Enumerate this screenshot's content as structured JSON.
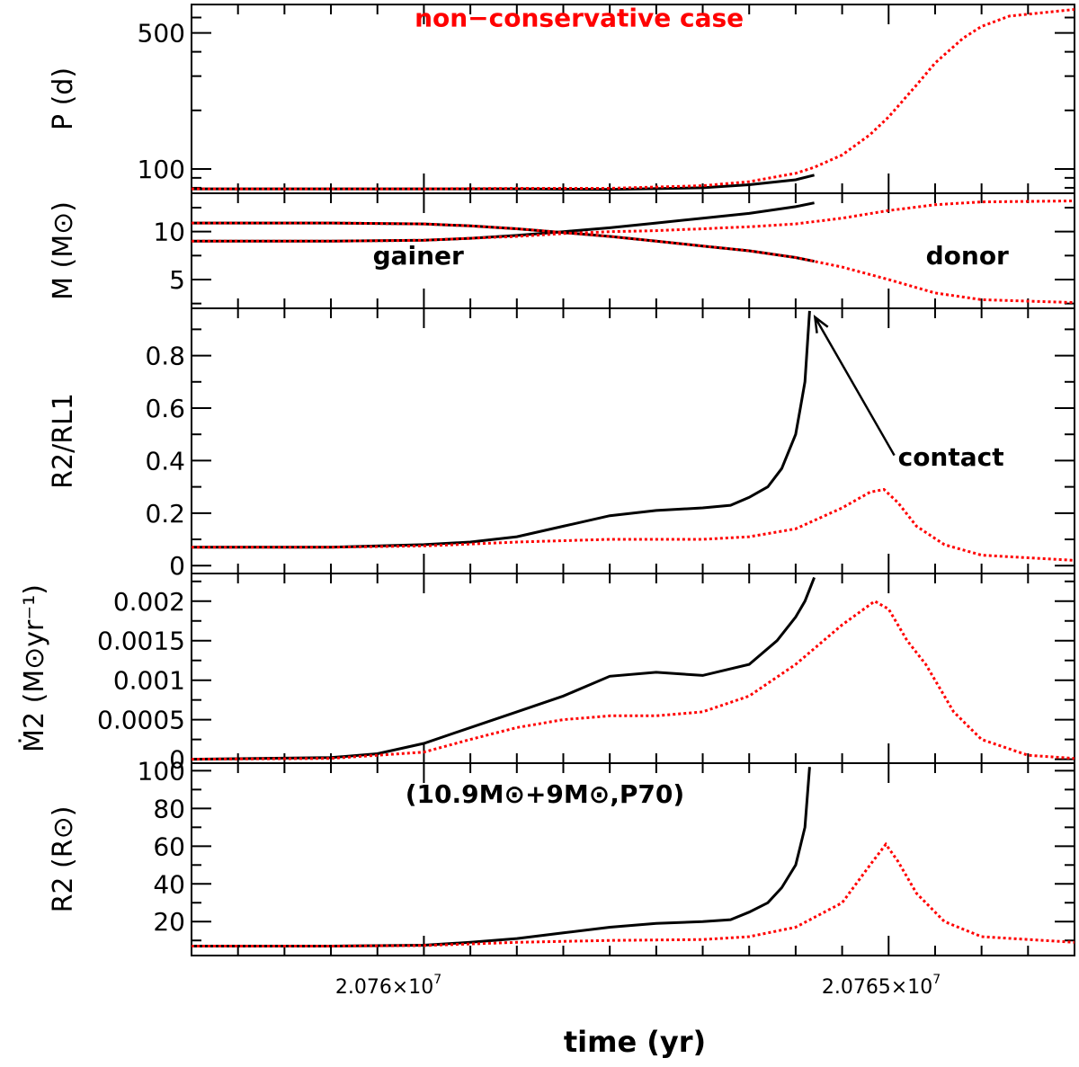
{
  "colors": {
    "conservative": "#000000",
    "non_conservative": "#ff0000",
    "axis": "#000000"
  },
  "x_axis": {
    "label": "time (yr)",
    "range": [
      20757500,
      20767000
    ],
    "ticks": [
      {
        "value": 20760000,
        "mantissa": "2.076×10",
        "exponent": "7"
      },
      {
        "value": 20765000,
        "mantissa": "2.0765×10",
        "exponent": "7"
      }
    ]
  },
  "chart_data": [
    {
      "type": "line",
      "id": "period",
      "yscale": "log",
      "ylabel": "P (d)",
      "ylim": [
        75,
        700
      ],
      "yticks": [
        100,
        500
      ],
      "annotations": [
        {
          "text": "non−conservative case",
          "color": "#ff0000",
          "x": 20759900,
          "y": 540
        }
      ],
      "series": [
        {
          "name": "conservative",
          "style": "solid",
          "x": [
            20757500,
            20760000,
            20761000,
            20762000,
            20763000,
            20763500,
            20764000,
            20764200
          ],
          "y": [
            79,
            79,
            79,
            78.5,
            80,
            83,
            88,
            93
          ]
        },
        {
          "name": "non-conservative",
          "style": "dotted",
          "x": [
            20757500,
            20760000,
            20761000,
            20762000,
            20763000,
            20763500,
            20764000,
            20764200,
            20764500,
            20764800,
            20765000,
            20765300,
            20765500,
            20765800,
            20766000,
            20766300,
            20767000
          ],
          "y": [
            79,
            79,
            79.5,
            79.5,
            82,
            86,
            95,
            102,
            118,
            150,
            185,
            270,
            350,
            470,
            540,
            610,
            660
          ]
        }
      ]
    },
    {
      "type": "line",
      "id": "mass",
      "ylabel": "M (M⊙)",
      "ylim": [
        2,
        14
      ],
      "yticks": [
        5,
        10
      ],
      "annotations": [
        {
          "text": "gainer",
          "x": 20759450,
          "y": 6.6
        },
        {
          "text": "donor",
          "x": 20765400,
          "y": 6.6
        }
      ],
      "series": [
        {
          "name": "donor conservative",
          "style": "solid",
          "x": [
            20757500,
            20759000,
            20760000,
            20760500,
            20761000,
            20761500,
            20762000,
            20762500,
            20763000,
            20763500,
            20764000,
            20764200
          ],
          "y": [
            10.9,
            10.9,
            10.8,
            10.6,
            10.3,
            9.9,
            9.5,
            9.0,
            8.5,
            8.0,
            7.3,
            6.9
          ]
        },
        {
          "name": "gainer conservative",
          "style": "solid",
          "x": [
            20757500,
            20759000,
            20760000,
            20760500,
            20761000,
            20761500,
            20762000,
            20762500,
            20763000,
            20763500,
            20764000,
            20764200
          ],
          "y": [
            9.0,
            9.0,
            9.1,
            9.3,
            9.6,
            10.0,
            10.4,
            10.9,
            11.4,
            11.9,
            12.6,
            13.0
          ]
        },
        {
          "name": "donor non-conservative",
          "style": "dotted",
          "x": [
            20757500,
            20759000,
            20760000,
            20760500,
            20761000,
            20761500,
            20762000,
            20762500,
            20763000,
            20763500,
            20764000,
            20764200,
            20764500,
            20765000,
            20765500,
            20766000,
            20767000
          ],
          "y": [
            10.9,
            10.9,
            10.8,
            10.6,
            10.3,
            9.9,
            9.5,
            9.0,
            8.5,
            8.0,
            7.3,
            6.9,
            6.3,
            5.0,
            3.6,
            2.9,
            2.6
          ]
        },
        {
          "name": "gainer non-conservative",
          "style": "dotted",
          "x": [
            20757500,
            20759000,
            20760000,
            20760500,
            20761000,
            20761500,
            20762000,
            20762500,
            20763000,
            20763500,
            20764000,
            20764500,
            20765000,
            20765500,
            20766000,
            20767000
          ],
          "y": [
            9.0,
            9.0,
            9.1,
            9.3,
            9.5,
            9.8,
            10.0,
            10.1,
            10.3,
            10.5,
            10.8,
            11.4,
            12.2,
            12.8,
            13.1,
            13.2
          ]
        }
      ]
    },
    {
      "type": "line",
      "id": "radius-ratio",
      "ylabel": "R2/RL1",
      "ylim": [
        -0.03,
        0.98
      ],
      "yticks": [
        0,
        0.2,
        0.4,
        0.6,
        0.8
      ],
      "yticklabels": [
        "0",
        "0.2",
        "0.4",
        "0.6",
        "0.8"
      ],
      "annotations": [
        {
          "text": "contact",
          "x": 20765100,
          "y": 0.38
        }
      ],
      "series": [
        {
          "name": "conservative",
          "style": "solid",
          "x": [
            20757500,
            20759000,
            20760000,
            20760500,
            20761000,
            20761500,
            20762000,
            20762500,
            20763000,
            20763300,
            20763500,
            20763700,
            20763850,
            20764000,
            20764050,
            20764100,
            20764150
          ],
          "y": [
            0.07,
            0.07,
            0.08,
            0.09,
            0.11,
            0.15,
            0.19,
            0.21,
            0.22,
            0.23,
            0.26,
            0.3,
            0.37,
            0.5,
            0.6,
            0.7,
            0.97
          ]
        },
        {
          "name": "non-conservative",
          "style": "dotted",
          "x": [
            20757500,
            20759000,
            20760000,
            20761000,
            20762000,
            20763000,
            20763500,
            20764000,
            20764500,
            20764800,
            20764950,
            20765100,
            20765300,
            20765600,
            20766000,
            20767000
          ],
          "y": [
            0.07,
            0.07,
            0.075,
            0.09,
            0.1,
            0.1,
            0.11,
            0.14,
            0.22,
            0.28,
            0.29,
            0.24,
            0.15,
            0.08,
            0.04,
            0.02
          ]
        }
      ]
    },
    {
      "type": "line",
      "id": "mass-loss-rate",
      "ylabel": "Ṁ2 (M⊙yr⁻¹)",
      "ylim": [
        -5e-05,
        0.00235
      ],
      "yticks": [
        0,
        0.0005,
        0.001,
        0.0015,
        0.002
      ],
      "yticklabels": [
        "0",
        "0.0005",
        "0.001",
        "0.0015",
        "0.002"
      ],
      "series": [
        {
          "name": "conservative",
          "style": "solid",
          "x": [
            20757500,
            20759000,
            20759500,
            20760000,
            20760500,
            20761000,
            20761500,
            20762000,
            20762500,
            20763000,
            20763500,
            20763800,
            20764000,
            20764100,
            20764200
          ],
          "y": [
            0,
            2e-05,
            7e-05,
            0.0002,
            0.0004,
            0.0006,
            0.0008,
            0.00105,
            0.0011,
            0.00106,
            0.0012,
            0.0015,
            0.0018,
            0.002,
            0.0023
          ]
        },
        {
          "name": "non-conservative",
          "style": "dotted",
          "x": [
            20757500,
            20759000,
            20760000,
            20760500,
            20761000,
            20761500,
            20762000,
            20762500,
            20763000,
            20763500,
            20764000,
            20764500,
            20764850,
            20765000,
            20765200,
            20765400,
            20765700,
            20766000,
            20766500,
            20767000
          ],
          "y": [
            0,
            1e-05,
            9e-05,
            0.00025,
            0.0004,
            0.0005,
            0.00055,
            0.00055,
            0.0006,
            0.0008,
            0.0012,
            0.0017,
            0.002,
            0.0019,
            0.0015,
            0.0012,
            0.0006,
            0.00025,
            5e-05,
            1e-05
          ]
        }
      ]
    },
    {
      "type": "line",
      "id": "donor-radius",
      "ylabel": "R2 (R⊙)",
      "ylim": [
        2,
        104
      ],
      "yticks": [
        20,
        40,
        60,
        80,
        100
      ],
      "yticklabels": [
        "20",
        "40",
        "60",
        "80",
        "100"
      ],
      "annotations": [
        {
          "text": "(10.9M⊙+9M⊙,P70)",
          "x": 20759800,
          "y": 83
        }
      ],
      "series": [
        {
          "name": "conservative",
          "style": "solid",
          "x": [
            20757500,
            20759000,
            20760000,
            20760500,
            20761000,
            20761500,
            20762000,
            20762500,
            20763000,
            20763300,
            20763500,
            20763700,
            20763850,
            20764000,
            20764050,
            20764100,
            20764150
          ],
          "y": [
            7,
            7,
            7.5,
            9,
            11,
            14,
            17,
            19,
            20,
            21,
            25,
            30,
            38,
            50,
            60,
            70,
            102
          ]
        },
        {
          "name": "non-conservative",
          "style": "dotted",
          "x": [
            20757500,
            20759000,
            20760000,
            20761000,
            20762000,
            20763000,
            20763500,
            20764000,
            20764500,
            20764800,
            20764970,
            20765100,
            20765300,
            20765600,
            20766000,
            20767000
          ],
          "y": [
            7,
            7,
            7.3,
            9,
            10,
            10.5,
            12,
            17,
            30,
            50,
            61,
            52,
            35,
            20,
            12,
            9
          ]
        }
      ]
    }
  ]
}
